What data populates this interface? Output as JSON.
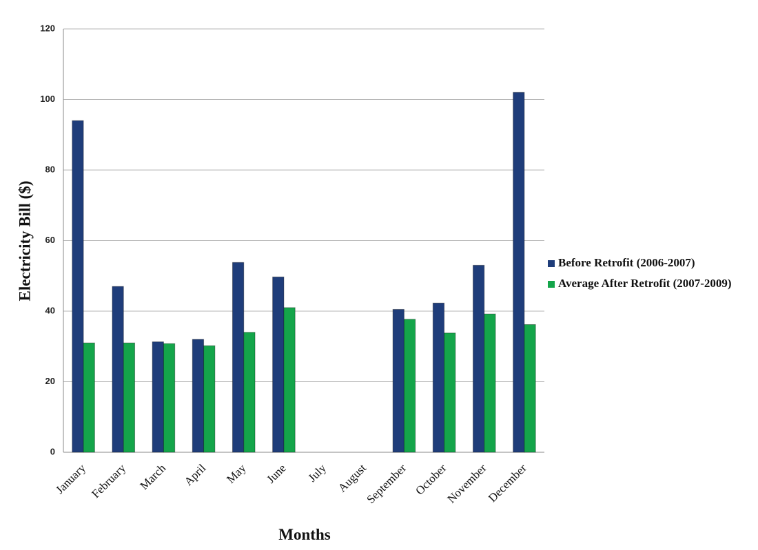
{
  "chart_data": {
    "type": "bar",
    "x_label": "Months",
    "y_label": "Electricity Bill ($)",
    "categories": [
      "January",
      "February",
      "March",
      "April",
      "May",
      "June",
      "July",
      "August",
      "September",
      "October",
      "November",
      "December"
    ],
    "series": [
      {
        "name": "Before Retrofit (2006-2007)",
        "color": "#1f3d7a",
        "values": [
          94,
          47,
          31.3,
          32,
          53.8,
          49.7,
          null,
          null,
          40.5,
          42.3,
          53,
          102
        ]
      },
      {
        "name": "Average After Retrofit (2007-2009)",
        "color": "#14a54a",
        "values": [
          31,
          31,
          30.8,
          30.2,
          34,
          41,
          null,
          null,
          37.7,
          33.8,
          39.2,
          36.2
        ]
      }
    ],
    "ylim": [
      0,
      120
    ],
    "yticks": [
      0,
      20,
      40,
      60,
      80,
      100,
      120
    ],
    "grid": true,
    "legend": "right"
  }
}
